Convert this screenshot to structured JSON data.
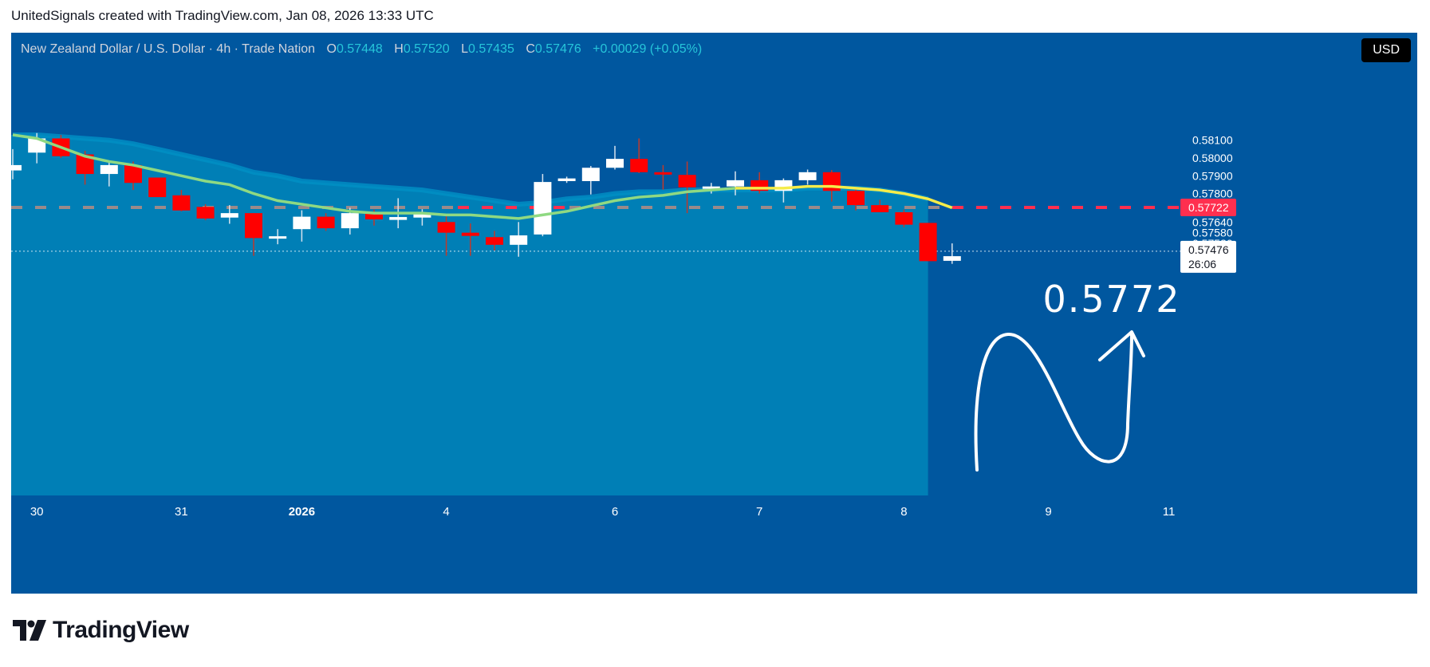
{
  "header": {
    "attribution": "UnitedSignals created with TradingView.com, Jan 08, 2026 13:33 UTC"
  },
  "legend": {
    "symbol": "New Zealand Dollar / U.S. Dollar · 4h · Trade Nation",
    "o_label": "O",
    "o_value": "0.57448",
    "h_label": "H",
    "h_value": "0.57520",
    "l_label": "L",
    "l_value": "0.57435",
    "c_label": "C",
    "c_value": "0.57476",
    "change": "+0.00029 (+0.05%)"
  },
  "currency_badge": "USD",
  "annotation": {
    "target_text": "0.5772"
  },
  "price_tags": {
    "level": "0.57722",
    "current": "0.57476",
    "countdown": "26:06"
  },
  "footer": {
    "brand": "TradingView"
  },
  "colors": {
    "background": "#00579f",
    "band_fill": "#0084b8",
    "band_edge": "#0091c5",
    "up_candle": "#ffffff",
    "down_candle": "#ff0000",
    "ema_green": "#8fd982",
    "ema_yellow": "#f5ec4a",
    "level_line": "#ff2f4f",
    "level_line_muted": "#9a8a8a"
  },
  "chart_data": {
    "type": "candlestick",
    "symbol": "NZDUSD",
    "timeframe": "4h",
    "y_ticks": [
      0.581,
      0.58,
      0.579,
      0.578,
      0.577,
      0.5764,
      0.5758,
      0.5752
    ],
    "y_tick_labels": [
      "0.58100",
      "0.58000",
      "0.57900",
      "0.57800",
      "0.57700",
      "0.57640",
      "0.57580",
      "0.57520"
    ],
    "x_ticks": [
      {
        "label": "30",
        "index": 1,
        "bold": false
      },
      {
        "label": "31",
        "index": 7,
        "bold": false
      },
      {
        "label": "2026",
        "index": 12,
        "bold": true
      },
      {
        "label": "4",
        "index": 18,
        "bold": false
      },
      {
        "label": "6",
        "index": 25,
        "bold": false
      },
      {
        "label": "7",
        "index": 31,
        "bold": false
      },
      {
        "label": "8",
        "index": 37,
        "bold": false
      },
      {
        "label": "9",
        "index": 43,
        "bold": false
      },
      {
        "label": "11",
        "index": 48,
        "bold": false
      }
    ],
    "candles": [
      {
        "o": 0.5793,
        "h": 0.5805,
        "l": 0.5788,
        "c": 0.5796
      },
      {
        "o": 0.5803,
        "h": 0.5814,
        "l": 0.5797,
        "c": 0.5811
      },
      {
        "o": 0.5811,
        "h": 0.5813,
        "l": 0.58,
        "c": 0.5801
      },
      {
        "o": 0.5802,
        "h": 0.5804,
        "l": 0.5785,
        "c": 0.5791
      },
      {
        "o": 0.5791,
        "h": 0.5798,
        "l": 0.5784,
        "c": 0.5796
      },
      {
        "o": 0.5796,
        "h": 0.5798,
        "l": 0.5782,
        "c": 0.5786
      },
      {
        "o": 0.5789,
        "h": 0.5789,
        "l": 0.5778,
        "c": 0.5778
      },
      {
        "o": 0.5779,
        "h": 0.5782,
        "l": 0.577,
        "c": 0.57705
      },
      {
        "o": 0.57725,
        "h": 0.5774,
        "l": 0.5765,
        "c": 0.5766
      },
      {
        "o": 0.57665,
        "h": 0.57735,
        "l": 0.5763,
        "c": 0.5769
      },
      {
        "o": 0.5769,
        "h": 0.5769,
        "l": 0.5745,
        "c": 0.5755
      },
      {
        "o": 0.5755,
        "h": 0.576,
        "l": 0.57515,
        "c": 0.5756
      },
      {
        "o": 0.576,
        "h": 0.57706,
        "l": 0.5753,
        "c": 0.5767
      },
      {
        "o": 0.5767,
        "h": 0.5769,
        "l": 0.5759,
        "c": 0.57605
      },
      {
        "o": 0.57605,
        "h": 0.5772,
        "l": 0.5757,
        "c": 0.5769
      },
      {
        "o": 0.5769,
        "h": 0.5771,
        "l": 0.5762,
        "c": 0.57655
      },
      {
        "o": 0.57652,
        "h": 0.57774,
        "l": 0.57605,
        "c": 0.57668
      },
      {
        "o": 0.57665,
        "h": 0.57712,
        "l": 0.5762,
        "c": 0.57692
      },
      {
        "o": 0.5764,
        "h": 0.5768,
        "l": 0.5745,
        "c": 0.5758
      },
      {
        "o": 0.5758,
        "h": 0.57632,
        "l": 0.5745,
        "c": 0.57562
      },
      {
        "o": 0.57555,
        "h": 0.5759,
        "l": 0.5748,
        "c": 0.57512
      },
      {
        "o": 0.57512,
        "h": 0.5764,
        "l": 0.57445,
        "c": 0.57565
      },
      {
        "o": 0.5757,
        "h": 0.5791,
        "l": 0.5756,
        "c": 0.57865
      },
      {
        "o": 0.5787,
        "h": 0.57895,
        "l": 0.5786,
        "c": 0.57885
      },
      {
        "o": 0.5787,
        "h": 0.57955,
        "l": 0.57795,
        "c": 0.57945
      },
      {
        "o": 0.57945,
        "h": 0.58068,
        "l": 0.57935,
        "c": 0.57995
      },
      {
        "o": 0.57995,
        "h": 0.5811,
        "l": 0.57915,
        "c": 0.5792
      },
      {
        "o": 0.5792,
        "h": 0.5796,
        "l": 0.57822,
        "c": 0.5791
      },
      {
        "o": 0.57905,
        "h": 0.5798,
        "l": 0.5769,
        "c": 0.57835
      },
      {
        "o": 0.57835,
        "h": 0.5786,
        "l": 0.578,
        "c": 0.5784
      },
      {
        "o": 0.5784,
        "h": 0.57925,
        "l": 0.5779,
        "c": 0.57875
      },
      {
        "o": 0.57875,
        "h": 0.5792,
        "l": 0.578,
        "c": 0.57815
      },
      {
        "o": 0.57815,
        "h": 0.57885,
        "l": 0.5775,
        "c": 0.57875
      },
      {
        "o": 0.57875,
        "h": 0.57935,
        "l": 0.5785,
        "c": 0.5792
      },
      {
        "o": 0.5792,
        "h": 0.57932,
        "l": 0.57755,
        "c": 0.57815
      },
      {
        "o": 0.57815,
        "h": 0.57825,
        "l": 0.57705,
        "c": 0.57735
      },
      {
        "o": 0.57735,
        "h": 0.57765,
        "l": 0.577,
        "c": 0.57695
      },
      {
        "o": 0.57695,
        "h": 0.5771,
        "l": 0.5761,
        "c": 0.57625
      },
      {
        "o": 0.57635,
        "h": 0.57635,
        "l": 0.5742,
        "c": 0.5742
      },
      {
        "o": 0.57422,
        "h": 0.5752,
        "l": 0.57405,
        "c": 0.57448
      }
    ],
    "ema_fast": [
      0.5813,
      0.5811,
      0.5806,
      0.5801,
      0.5798,
      0.5796,
      0.5793,
      0.579,
      0.5787,
      0.5785,
      0.578,
      0.5776,
      0.5774,
      0.5772,
      0.577,
      0.5769,
      0.5769,
      0.5769,
      0.5768,
      0.5768,
      0.5767,
      0.5766,
      0.5768,
      0.577,
      0.5773,
      0.5776,
      0.5778,
      0.5779,
      0.5781,
      0.5782,
      0.5783,
      0.5783,
      0.5783,
      0.5784,
      0.5784,
      0.5783,
      0.5782,
      0.578,
      0.5777,
      0.5772
    ],
    "ema_slow": [
      0.5813,
      0.5813,
      0.5812,
      0.5811,
      0.581,
      0.5808,
      0.5805,
      0.5802,
      0.5799,
      0.5796,
      0.5792,
      0.579,
      0.5787,
      0.5786,
      0.5785,
      0.5784,
      0.5783,
      0.5782,
      0.578,
      0.5778,
      0.5776,
      0.5774,
      0.5775,
      0.5777,
      0.5778,
      0.578,
      0.5781,
      0.5781,
      0.5782,
      0.5782,
      0.5782,
      0.5782,
      0.5782,
      0.5783,
      0.5783,
      0.5783,
      0.5782,
      0.578,
      0.5777,
      0.5772
    ],
    "horizontal_level": 0.57722,
    "current_price": 0.57476
  }
}
